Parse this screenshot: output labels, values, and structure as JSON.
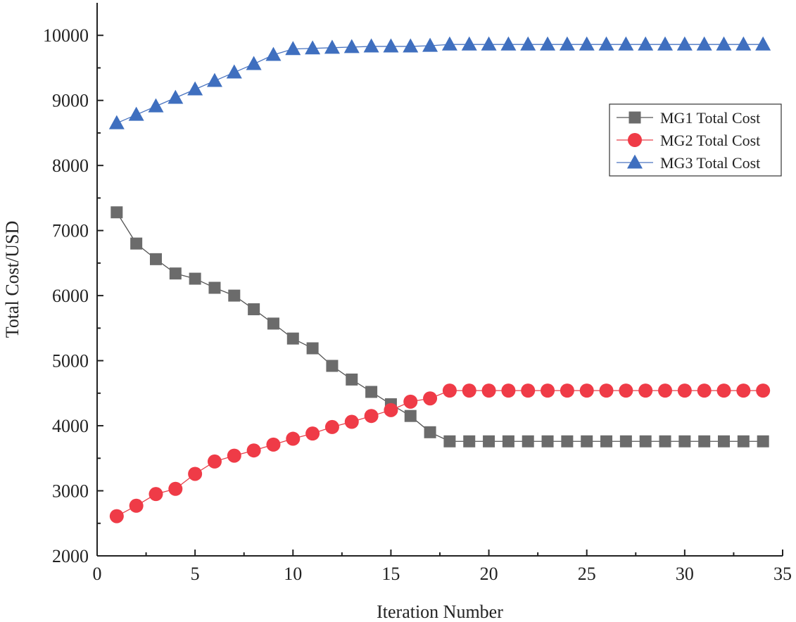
{
  "chart_data": {
    "type": "line",
    "title": "",
    "xlabel": "Iteration Number",
    "ylabel": "Total Cost/USD",
    "xlim": [
      0,
      35
    ],
    "ylim": [
      2000,
      10500
    ],
    "xticks": [
      0,
      5,
      10,
      15,
      20,
      25,
      30,
      35
    ],
    "yticks": [
      2000,
      3000,
      4000,
      5000,
      6000,
      7000,
      8000,
      9000,
      10000
    ],
    "legend_position": "upper-right",
    "grid": false,
    "x": [
      1,
      2,
      3,
      4,
      5,
      6,
      7,
      8,
      9,
      10,
      11,
      12,
      13,
      14,
      15,
      16,
      17,
      18,
      19,
      20,
      21,
      22,
      23,
      24,
      25,
      26,
      27,
      28,
      29,
      30,
      31,
      32,
      33,
      34
    ],
    "series": [
      {
        "name": "MG1 Total Cost",
        "marker": "square",
        "color": "#6b6b6b",
        "line_color": "#555555",
        "values": [
          7280,
          6800,
          6560,
          6340,
          6260,
          6120,
          6000,
          5790,
          5570,
          5340,
          5190,
          4920,
          4710,
          4520,
          4330,
          4150,
          3900,
          3760,
          3760,
          3760,
          3760,
          3760,
          3760,
          3760,
          3760,
          3760,
          3760,
          3760,
          3760,
          3760,
          3760,
          3760,
          3760,
          3760
        ]
      },
      {
        "name": "MG2 Total Cost",
        "marker": "circle",
        "color": "#ef3b47",
        "line_color": "#e8404a",
        "values": [
          2610,
          2770,
          2950,
          3030,
          3260,
          3450,
          3540,
          3620,
          3710,
          3800,
          3880,
          3980,
          4060,
          4150,
          4240,
          4370,
          4420,
          4540,
          4540,
          4540,
          4540,
          4540,
          4540,
          4540,
          4540,
          4540,
          4540,
          4540,
          4540,
          4540,
          4540,
          4540,
          4540,
          4540
        ]
      },
      {
        "name": "MG3 Total Cost",
        "marker": "triangle",
        "color": "#3f6fbf",
        "line_color": "#4a74c0",
        "values": [
          8650,
          8780,
          8910,
          9040,
          9170,
          9300,
          9430,
          9560,
          9700,
          9790,
          9800,
          9810,
          9820,
          9830,
          9830,
          9830,
          9840,
          9860,
          9860,
          9860,
          9860,
          9860,
          9860,
          9860,
          9860,
          9860,
          9860,
          9860,
          9860,
          9860,
          9860,
          9860,
          9860,
          9860
        ]
      }
    ]
  }
}
